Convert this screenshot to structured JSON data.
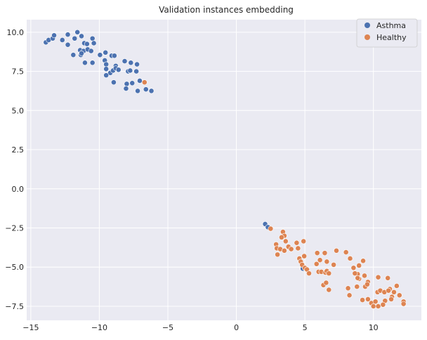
{
  "chart_data": {
    "type": "scatter",
    "title": "Validation instances embedding",
    "xlabel": "",
    "ylabel": "",
    "xlim": [
      -15.3,
      13.5
    ],
    "ylim": [
      -8.4,
      10.8
    ],
    "xticks": [
      -15,
      -10,
      -5,
      0,
      5,
      10
    ],
    "xtick_labels": [
      "−15",
      "−10",
      "−5",
      "0",
      "5",
      "10"
    ],
    "yticks": [
      -7.5,
      -5.0,
      -2.5,
      0.0,
      2.5,
      5.0,
      7.5,
      10.0
    ],
    "ytick_labels": [
      "−7.5",
      "−5.0",
      "−2.5",
      "0.0",
      "2.5",
      "5.0",
      "7.5",
      "10.0"
    ],
    "grid": true,
    "legend_position": "top-right",
    "series": [
      {
        "name": "Asthma",
        "color": "#4c72b0",
        "points": [
          [
            -13.9,
            9.35
          ],
          [
            -13.7,
            9.5
          ],
          [
            -13.4,
            9.6
          ],
          [
            -13.3,
            9.8
          ],
          [
            -12.7,
            9.5
          ],
          [
            -12.3,
            9.85
          ],
          [
            -12.3,
            9.2
          ],
          [
            -11.8,
            9.6
          ],
          [
            -11.6,
            10.0
          ],
          [
            -11.3,
            9.75
          ],
          [
            -11.1,
            9.3
          ],
          [
            -10.9,
            9.25
          ],
          [
            -10.5,
            9.6
          ],
          [
            -10.4,
            9.3
          ],
          [
            -11.4,
            8.85
          ],
          [
            -11.15,
            8.8
          ],
          [
            -10.85,
            8.9
          ],
          [
            -10.6,
            8.8
          ],
          [
            -11.35,
            8.55
          ],
          [
            -11.3,
            8.65
          ],
          [
            -11.9,
            8.55
          ],
          [
            -11.05,
            8.05
          ],
          [
            -10.5,
            8.05
          ],
          [
            -9.95,
            8.55
          ],
          [
            -9.55,
            8.7
          ],
          [
            -9.1,
            8.5
          ],
          [
            -8.9,
            8.5
          ],
          [
            -9.6,
            8.2
          ],
          [
            -9.5,
            7.95
          ],
          [
            -9.5,
            7.65
          ],
          [
            -9.2,
            7.4
          ],
          [
            -9.0,
            7.55
          ],
          [
            -8.8,
            7.85
          ],
          [
            -8.8,
            7.7
          ],
          [
            -8.6,
            7.6
          ],
          [
            -8.15,
            8.15
          ],
          [
            -7.7,
            8.05
          ],
          [
            -7.25,
            7.95
          ],
          [
            -7.9,
            7.5
          ],
          [
            -7.75,
            7.55
          ],
          [
            -7.3,
            7.5
          ],
          [
            -9.5,
            7.25
          ],
          [
            -8.95,
            6.8
          ],
          [
            -8.0,
            6.7
          ],
          [
            -7.6,
            6.75
          ],
          [
            -7.05,
            6.9
          ],
          [
            -8.05,
            6.4
          ],
          [
            -7.2,
            6.25
          ],
          [
            -6.6,
            6.35
          ],
          [
            -6.2,
            6.25
          ],
          [
            2.1,
            -2.25
          ],
          [
            2.3,
            -2.45
          ],
          [
            4.85,
            -5.1
          ]
        ]
      },
      {
        "name": "Healthy",
        "color": "#dd8452",
        "points": [
          [
            -6.7,
            6.8
          ],
          [
            2.5,
            -2.55
          ],
          [
            3.4,
            -2.75
          ],
          [
            2.9,
            -3.55
          ],
          [
            2.95,
            -3.8
          ],
          [
            3.0,
            -4.2
          ],
          [
            3.5,
            -3.0
          ],
          [
            3.6,
            -3.35
          ],
          [
            3.8,
            -3.7
          ],
          [
            3.3,
            -3.1
          ],
          [
            3.2,
            -3.85
          ],
          [
            4.9,
            -3.35
          ],
          [
            4.4,
            -3.45
          ],
          [
            4.5,
            -3.8
          ],
          [
            4.0,
            -3.85
          ],
          [
            3.5,
            -3.95
          ],
          [
            4.6,
            -4.45
          ],
          [
            4.7,
            -4.65
          ],
          [
            4.8,
            -4.85
          ],
          [
            5.0,
            -5.05
          ],
          [
            5.15,
            -5.15
          ],
          [
            5.3,
            -5.4
          ],
          [
            4.95,
            -4.3
          ],
          [
            5.9,
            -4.1
          ],
          [
            6.45,
            -4.1
          ],
          [
            5.85,
            -4.8
          ],
          [
            6.1,
            -4.55
          ],
          [
            6.6,
            -4.65
          ],
          [
            6.0,
            -5.3
          ],
          [
            6.2,
            -5.3
          ],
          [
            6.5,
            -5.35
          ],
          [
            6.6,
            -5.25
          ],
          [
            6.75,
            -5.4
          ],
          [
            6.35,
            -6.15
          ],
          [
            6.55,
            -6.0
          ],
          [
            6.75,
            -6.45
          ],
          [
            7.3,
            -3.95
          ],
          [
            8.0,
            -4.05
          ],
          [
            8.3,
            -4.45
          ],
          [
            8.55,
            -5.05
          ],
          [
            8.85,
            -5.45
          ],
          [
            8.95,
            -5.75
          ],
          [
            9.25,
            -4.6
          ],
          [
            8.95,
            -4.9
          ],
          [
            8.85,
            -5.7
          ],
          [
            9.35,
            -5.55
          ],
          [
            9.6,
            -5.95
          ],
          [
            8.8,
            -6.25
          ],
          [
            9.4,
            -6.25
          ],
          [
            9.55,
            -6.1
          ],
          [
            8.15,
            -6.35
          ],
          [
            8.25,
            -6.8
          ],
          [
            9.2,
            -7.1
          ],
          [
            9.6,
            -7.05
          ],
          [
            9.85,
            -7.3
          ],
          [
            10.15,
            -7.2
          ],
          [
            10.0,
            -7.5
          ],
          [
            10.3,
            -6.6
          ],
          [
            10.35,
            -5.65
          ],
          [
            10.5,
            -6.5
          ],
          [
            10.8,
            -6.6
          ],
          [
            11.05,
            -5.7
          ],
          [
            11.2,
            -6.4
          ],
          [
            11.35,
            -6.9
          ],
          [
            11.1,
            -6.5
          ],
          [
            11.5,
            -6.6
          ],
          [
            11.7,
            -6.2
          ],
          [
            11.9,
            -6.8
          ],
          [
            12.2,
            -7.2
          ],
          [
            12.2,
            -7.35
          ],
          [
            10.85,
            -7.15
          ],
          [
            11.3,
            -7.05
          ],
          [
            10.7,
            -7.4
          ],
          [
            10.35,
            -7.5
          ],
          [
            7.1,
            -4.85
          ],
          [
            8.65,
            -5.4
          ]
        ]
      }
    ]
  }
}
